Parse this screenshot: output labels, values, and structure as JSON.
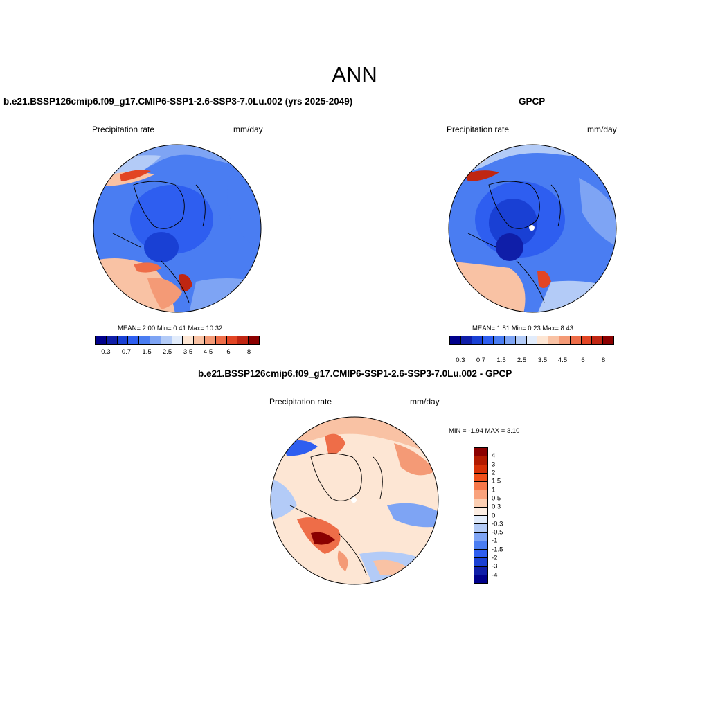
{
  "figure": {
    "title": "ANN",
    "colors": {
      "levels": [
        "#00008b",
        "#0f1ea8",
        "#1940d4",
        "#2e5ef0",
        "#4a7df2",
        "#7ea4f4",
        "#b3cbf7",
        "#e2ecfb",
        "#fde6d4",
        "#f9c2a4",
        "#f49a76",
        "#ee6d48",
        "#e24524",
        "#c02612",
        "#8b0000"
      ]
    },
    "panel_model": {
      "title": "b.e21.BSSP126cmip6.f09_g17.CMIP6-SSP1-2.6-SSP3-7.0Lu.002 (yrs 2025-2049)",
      "variable": "Precipitation rate",
      "units": "mm/day",
      "stats": "MEAN=   2.00  Min=   0.41  Max=  10.32",
      "colorbar_labels": [
        "0.3",
        "0.7",
        "1.5",
        "2.5",
        "3.5",
        "4.5",
        "6",
        "8"
      ]
    },
    "panel_obs": {
      "title": "GPCP",
      "variable": "Precipitation rate",
      "units": "mm/day",
      "stats": "MEAN=   1.81  Min=   0.23  Max=   8.43",
      "colorbar_labels": [
        "0.3",
        "0.7",
        "1.5",
        "2.5",
        "3.5",
        "4.5",
        "6",
        "8"
      ]
    },
    "panel_diff": {
      "title": "b.e21.BSSP126cmip6.f09_g17.CMIP6-SSP1-2.6-SSP3-7.0Lu.002 - GPCP",
      "variable": "Precipitation rate",
      "units": "mm/day",
      "stats": "MIN =  -1.94 MAX =   3.10",
      "colorbar_labels": [
        "4",
        "3",
        "2",
        "1.5",
        "1",
        "0.5",
        "0.3",
        "0",
        "-0.3",
        "-0.5",
        "-1",
        "-1.5",
        "-2",
        "-3",
        "-4"
      ]
    }
  }
}
